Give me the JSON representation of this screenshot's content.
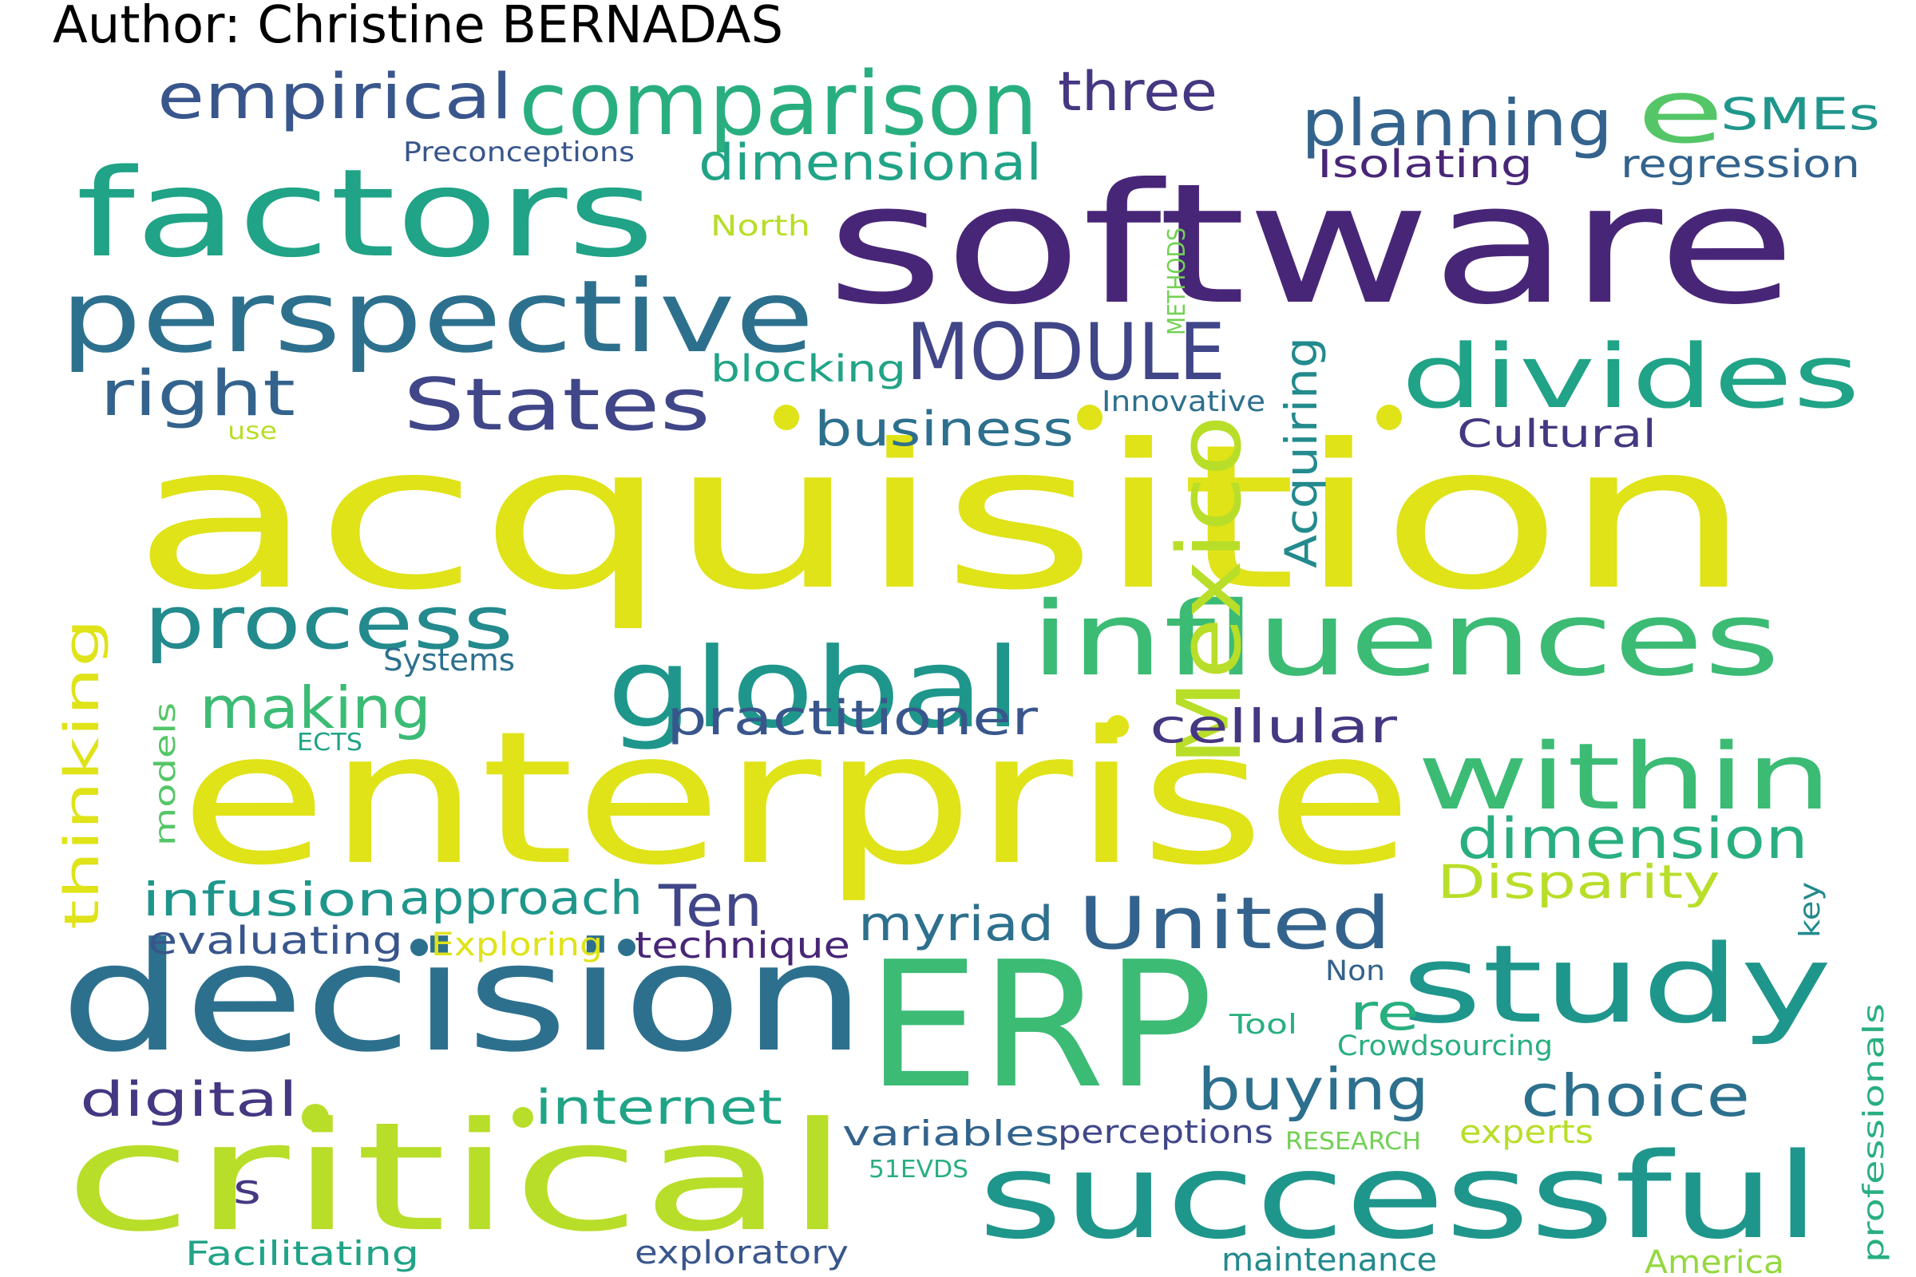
{
  "author": "Author: Christine BERNADAS",
  "words": [
    {
      "text": "acquisition",
      "color": "#dfe318"
    },
    {
      "text": "software",
      "color": "#482677"
    },
    {
      "text": "enterprise",
      "color": "#dfe318"
    },
    {
      "text": "decision",
      "color": "#2d708e"
    },
    {
      "text": "ERP",
      "color": "#3cbb75"
    },
    {
      "text": "critical",
      "color": "#b8de29"
    },
    {
      "text": "factors",
      "color": "#20a386"
    },
    {
      "text": "successful",
      "color": "#1f968b"
    },
    {
      "text": "influences",
      "color": "#3cbb75"
    },
    {
      "text": "global",
      "color": "#1f968b"
    },
    {
      "text": "perspective",
      "color": "#2d708e"
    },
    {
      "text": "study",
      "color": "#1f968b"
    },
    {
      "text": "comparison",
      "color": "#29af7f"
    },
    {
      "text": "within",
      "color": "#3cbb75"
    },
    {
      "text": "divides",
      "color": "#20a386"
    },
    {
      "text": "Mexico",
      "color": "#b8de29"
    },
    {
      "text": "e",
      "color": "#55c667"
    },
    {
      "text": "MODULE",
      "color": "#404688"
    },
    {
      "text": "United",
      "color": "#33638d"
    },
    {
      "text": "process",
      "color": "#238a8d"
    },
    {
      "text": "States",
      "color": "#404688"
    },
    {
      "text": "planning",
      "color": "#33638d"
    },
    {
      "text": "empirical",
      "color": "#39568c"
    },
    {
      "text": "right",
      "color": "#33638d"
    },
    {
      "text": "making",
      "color": "#3cbb75"
    },
    {
      "text": "choice",
      "color": "#2d708e"
    },
    {
      "text": "buying",
      "color": "#2d708e"
    },
    {
      "text": "dimension",
      "color": "#29af7f"
    },
    {
      "text": "three",
      "color": "#453781"
    },
    {
      "text": "dimensional",
      "color": "#20a386"
    },
    {
      "text": "business",
      "color": "#2d708e"
    },
    {
      "text": "practitioner",
      "color": "#39568c"
    },
    {
      "text": "cellular",
      "color": "#453781"
    },
    {
      "text": "infusion",
      "color": "#1f968b"
    },
    {
      "text": "approach",
      "color": "#1f968b"
    },
    {
      "text": "Ten",
      "color": "#404688"
    },
    {
      "text": "myriad",
      "color": "#2d708e"
    },
    {
      "text": "internet",
      "color": "#20a386"
    },
    {
      "text": "digital",
      "color": "#453781"
    },
    {
      "text": "re",
      "color": "#29af7f"
    },
    {
      "text": "thinking",
      "color": "#dfe318"
    },
    {
      "text": "Disparity",
      "color": "#b8de29"
    },
    {
      "text": "Acquiring",
      "color": "#238a8d"
    },
    {
      "text": "SMEs",
      "color": "#1f968b"
    },
    {
      "text": "Isolating",
      "color": "#482677"
    },
    {
      "text": "regression",
      "color": "#33638d"
    },
    {
      "text": "Cultural",
      "color": "#453781"
    },
    {
      "text": "evaluating",
      "color": "#39568c"
    },
    {
      "text": "technique",
      "color": "#482677"
    },
    {
      "text": "Exploring",
      "color": "#dfe318"
    },
    {
      "text": "variables",
      "color": "#33638d"
    },
    {
      "text": "perceptions",
      "color": "#404688"
    },
    {
      "text": "blocking",
      "color": "#20a386"
    },
    {
      "text": "Innovative",
      "color": "#2d708e"
    },
    {
      "text": "Systems",
      "color": "#2d708e"
    },
    {
      "text": "models",
      "color": "#55c667"
    },
    {
      "text": "professionals",
      "color": "#29af7f"
    },
    {
      "text": "key",
      "color": "#238a8d"
    },
    {
      "text": "Crowdsourcing",
      "color": "#29af7f"
    },
    {
      "text": "experts",
      "color": "#b8de29"
    },
    {
      "text": "Facilitating",
      "color": "#20a386"
    },
    {
      "text": "exploratory",
      "color": "#39568c"
    },
    {
      "text": "maintenance",
      "color": "#238a8d"
    },
    {
      "text": "America",
      "color": "#95d840"
    },
    {
      "text": "Preconceptions",
      "color": "#39568c"
    },
    {
      "text": "North",
      "color": "#b8de29"
    },
    {
      "text": "METHODS",
      "color": "#73d055"
    },
    {
      "text": "use",
      "color": "#b8de29"
    },
    {
      "text": "ECTS",
      "color": "#20a386"
    },
    {
      "text": "Non",
      "color": "#33638d"
    },
    {
      "text": "Tool",
      "color": "#29af7f"
    },
    {
      "text": "RESEARCH",
      "color": "#73d055"
    },
    {
      "text": "51EVDS",
      "color": "#29af7f"
    },
    {
      "text": "s",
      "color": "#453781"
    }
  ],
  "dot_color_yellow": "#dfe318",
  "dot_color_blue": "#2d708e",
  "dot_color_green": "#b8de29"
}
